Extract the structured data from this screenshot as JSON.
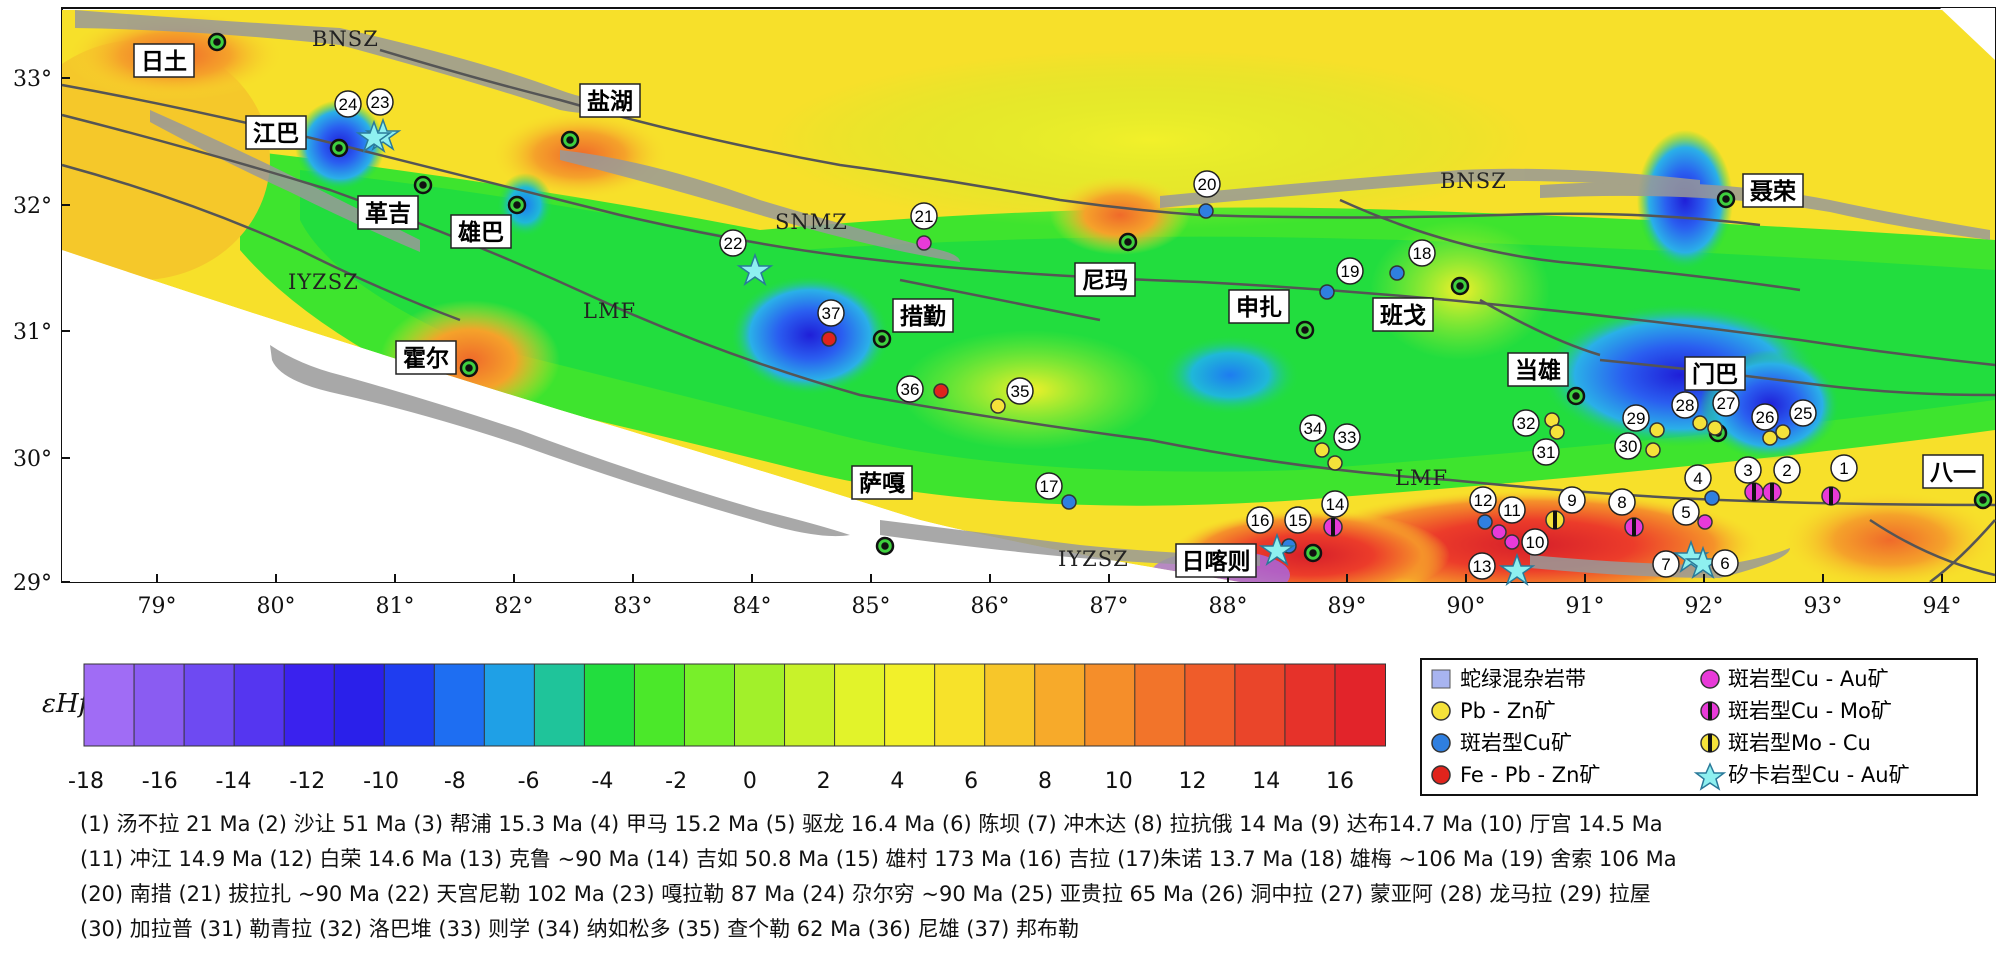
{
  "colorbar": {
    "label": "εHf(t)",
    "ticks": [
      "-18",
      "-16",
      "-14",
      "-12",
      "-10",
      "-8",
      "-6",
      "-4",
      "-2",
      "0",
      "2",
      "4",
      "6",
      "8",
      "10",
      "12",
      "14",
      "16"
    ],
    "colors": [
      "#a06cf5",
      "#8a5cf2",
      "#6e4af2",
      "#5536f0",
      "#3a22ee",
      "#2a20ea",
      "#1f3df0",
      "#1e6ef2",
      "#1fa0e6",
      "#1fc49a",
      "#22dd3e",
      "#4be82a",
      "#78ef2a",
      "#a2f02a",
      "#c8f22a",
      "#e2f32a",
      "#f2f02a",
      "#f7e22a",
      "#f7c62a",
      "#f7aa2a",
      "#f58e2a",
      "#f2742a",
      "#ef5c2a",
      "#ea452a",
      "#e6322a",
      "#e2242a"
    ]
  },
  "axes": {
    "lon_ticks": [
      "79°",
      "80°",
      "81°",
      "82°",
      "83°",
      "84°",
      "85°",
      "86°",
      "87°",
      "88°",
      "89°",
      "90°",
      "91°",
      "92°",
      "93°",
      "94°"
    ],
    "lat_ticks": [
      "33°",
      "32°",
      "31°",
      "30°",
      "29°"
    ]
  },
  "places": [
    "日土",
    "江巴",
    "革吉",
    "雄巴",
    "盐湖",
    "霍尔",
    "措勤",
    "尼玛",
    "申扎",
    "班戈",
    "当雄",
    "门巴",
    "聂荣",
    "萨嘎",
    "日喀则",
    "八一"
  ],
  "zones": [
    "BNSZ",
    "BNSZ",
    "SNMZ",
    "IYZSZ",
    "LMF",
    "LMF",
    "IYZSZ"
  ],
  "deposit_numbers": [
    "1",
    "2",
    "3",
    "4",
    "5",
    "6",
    "7",
    "8",
    "9",
    "10",
    "11",
    "12",
    "13",
    "14",
    "15",
    "16",
    "17",
    "18",
    "19",
    "20",
    "21",
    "22",
    "23",
    "24",
    "25",
    "26",
    "27",
    "28",
    "29",
    "30",
    "31",
    "32",
    "33",
    "34",
    "35",
    "36",
    "37"
  ],
  "legend": {
    "items": [
      {
        "label": "蛇绿混杂岩带",
        "symbol": "square",
        "color": "#a8b4f0"
      },
      {
        "label": "Pb - Zn矿",
        "symbol": "circle",
        "color": "#f5e23a"
      },
      {
        "label": "斑岩型Cu矿",
        "symbol": "circle",
        "color": "#2f7fe0"
      },
      {
        "label": "Fe - Pb - Zn矿",
        "symbol": "circle",
        "color": "#e0241c"
      },
      {
        "label": "斑岩型Cu - Au矿",
        "symbol": "circle",
        "color": "#e83ad8"
      },
      {
        "label": "斑岩型Cu - Mo矿",
        "symbol": "half",
        "color": "#e83ad8"
      },
      {
        "label": "斑岩型Mo - Cu",
        "symbol": "half",
        "color": "#f5e23a"
      },
      {
        "label": "矽卡岩型Cu - Au矿",
        "symbol": "star",
        "color": "#8ef0f0"
      }
    ]
  },
  "caption": [
    "(1) 汤不拉  21 Ma  (2) 沙让  51 Ma  (3) 帮浦  15.3 Ma  (4) 甲马  15.2 Ma  (5) 驱龙  16.4 Ma  (6) 陈坝   (7) 冲木达   (8) 拉抗俄  14 Ma   (9) 达布14.7 Ma  (10) 厅宫  14.5 Ma",
    "(11) 冲江  14.9 Ma  (12) 白荣  14.6 Ma  (13) 克鲁  ~90 Ma  (14) 吉如  50.8 Ma  (15) 雄村  173 Ma  (16) 吉拉   (17)朱诺  13.7 Ma  (18) 雄梅  ~106 Ma  (19) 舍索  106 Ma",
    "(20) 南措   (21) 拔拉扎  ~90 Ma  (22) 天宫尼勒  102 Ma  (23) 嘎拉勒  87 Ma  (24) 尕尔穷  ~90 Ma  (25) 亚贵拉  65 Ma  (26) 洞中拉   (27) 蒙亚阿   (28) 龙马拉   (29) 拉屋",
    "(30) 加拉普   (31) 勒青拉   (32) 洛巴堆   (33) 则学   (34) 纳如松多   (35) 查个勒   62 Ma  (36) 尼雄   (37) 邦布勒"
  ]
}
